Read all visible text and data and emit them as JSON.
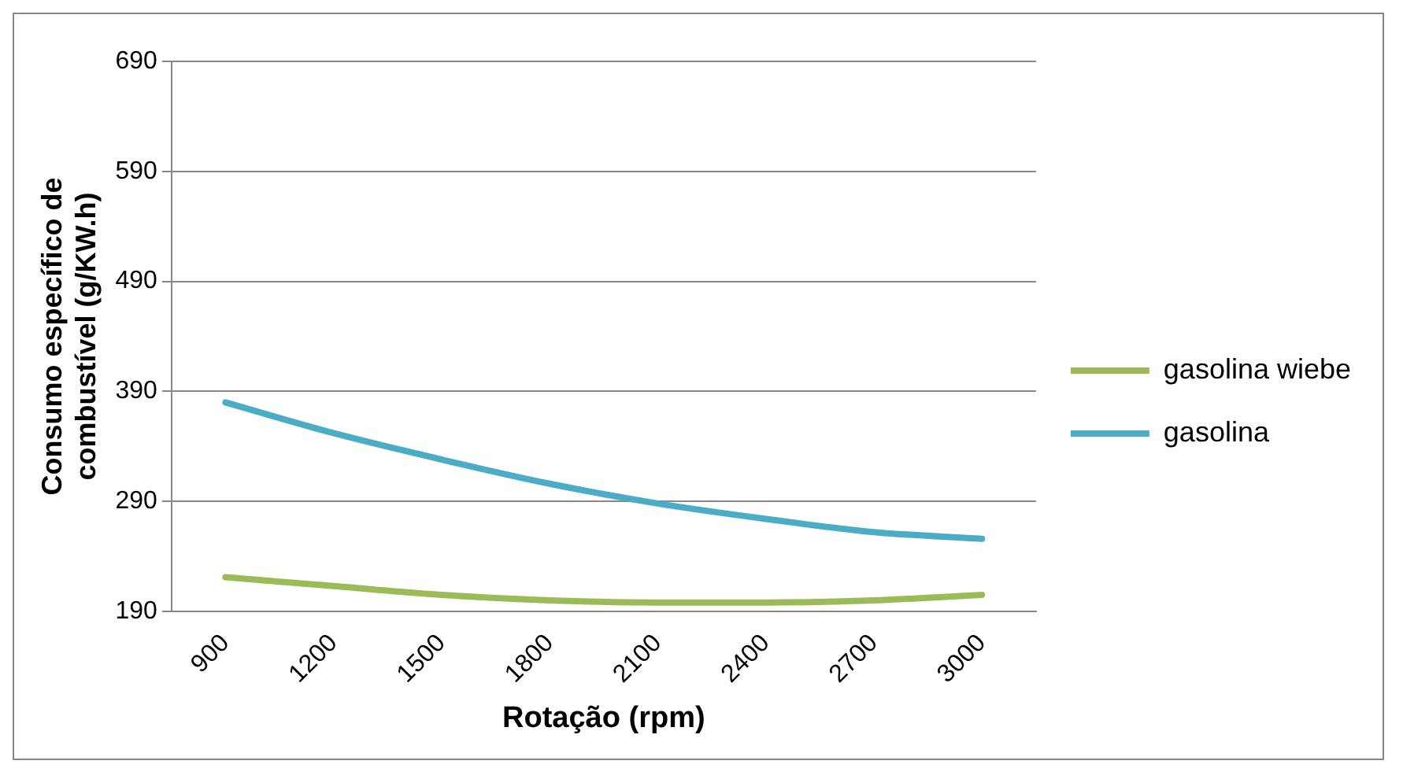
{
  "chart_data": {
    "type": "line",
    "xlabel": "Rotação (rpm)",
    "ylabel": "Consumo específico de combustível (g/KW.h)",
    "categories": [
      "900",
      "1200",
      "1500",
      "1800",
      "2100",
      "2400",
      "2700",
      "3000"
    ],
    "series": [
      {
        "name": "gasolina wiebe",
        "color": "#9bbb59",
        "values": [
          221,
          213,
          205,
          200,
          198,
          198,
          200,
          205
        ]
      },
      {
        "name": "gasolina",
        "color": "#4bacc6",
        "values": [
          380,
          352,
          328,
          306,
          288,
          274,
          262,
          256
        ]
      }
    ],
    "ylim": [
      190,
      690
    ],
    "yticks": [
      190,
      290,
      390,
      490,
      590,
      690
    ],
    "grid": "y",
    "legend": "right",
    "marker": "none"
  }
}
